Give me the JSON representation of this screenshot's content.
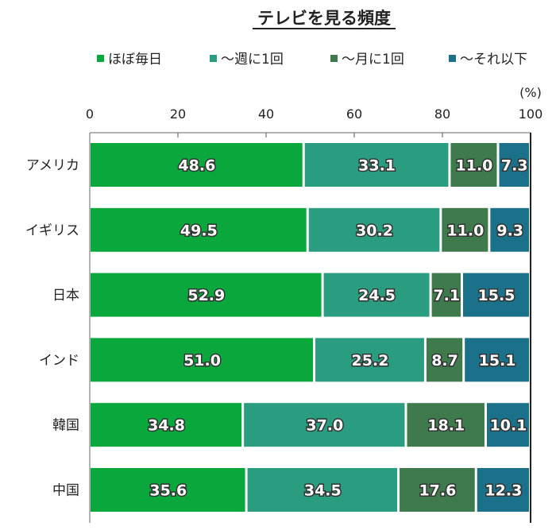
{
  "chart_data": {
    "type": "bar",
    "orientation": "horizontal",
    "stacked": true,
    "title": "テレビを見る頻度",
    "unit_label": "(%)",
    "xlim": [
      0,
      100
    ],
    "xticks": [
      0,
      20,
      40,
      60,
      80,
      100
    ],
    "legend_position": "top",
    "categories": [
      "アメリカ",
      "イギリス",
      "日本",
      "インド",
      "韓国",
      "中国"
    ],
    "series": [
      {
        "name": "ほぼ毎日",
        "color": "#0aa83c",
        "values": [
          48.6,
          49.5,
          52.9,
          51.0,
          34.8,
          35.6
        ]
      },
      {
        "name": "～週に1回",
        "color": "#2a9d80",
        "values": [
          33.1,
          30.2,
          24.5,
          25.2,
          37.0,
          34.5
        ]
      },
      {
        "name": "～月に1回",
        "color": "#3f7a4d",
        "values": [
          11.0,
          11.0,
          7.1,
          8.7,
          18.1,
          17.6
        ]
      },
      {
        "name": "～それ以下",
        "color": "#1b7189",
        "values": [
          7.3,
          9.3,
          15.5,
          15.1,
          10.1,
          12.3
        ]
      }
    ]
  }
}
